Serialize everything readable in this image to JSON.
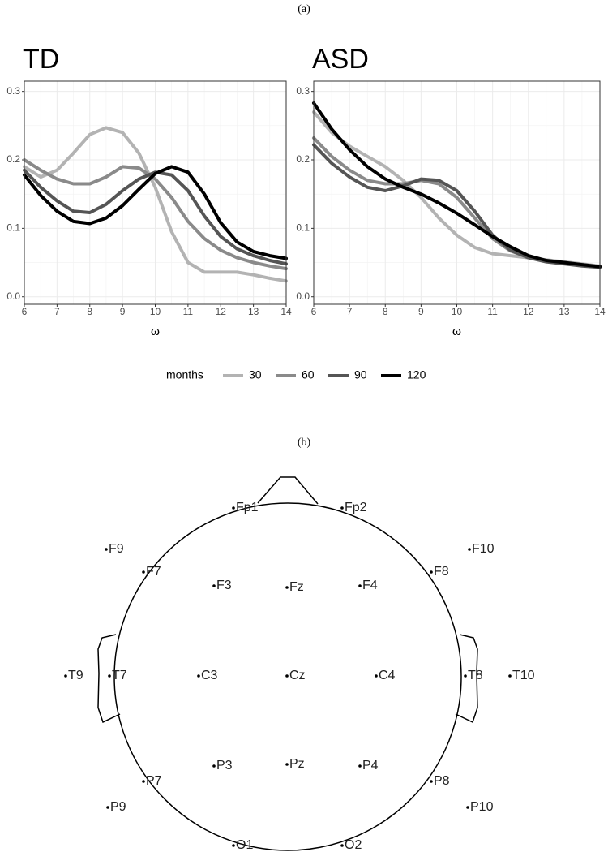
{
  "panel_labels": [
    "(a)",
    "(b)"
  ],
  "legend": {
    "title": "months"
  },
  "chart_data": [
    {
      "type": "line",
      "title": "TD",
      "x_label": "ω",
      "x": [
        6,
        6.5,
        7,
        7.5,
        8,
        8.5,
        9,
        9.5,
        10,
        10.5,
        11,
        11.5,
        12,
        12.5,
        13,
        13.5,
        14
      ],
      "xlim": [
        6,
        14
      ],
      "xticks": [
        6,
        7,
        8,
        9,
        10,
        11,
        12,
        13,
        14
      ],
      "ylim": [
        -0.011,
        0.315
      ],
      "yticks": [
        {
          "value": 0,
          "label": "0.0"
        },
        0.1,
        0.2,
        0.3
      ],
      "grid": true,
      "series": [
        {
          "name": "30",
          "color": "#b3b3b3",
          "values": [
            0.19,
            0.175,
            0.185,
            0.21,
            0.237,
            0.247,
            0.24,
            0.21,
            0.16,
            0.095,
            0.05,
            0.036,
            0.036,
            0.036,
            0.032,
            0.027,
            0.023
          ]
        },
        {
          "name": "60",
          "color": "#8a8a8a",
          "values": [
            0.2,
            0.185,
            0.172,
            0.165,
            0.165,
            0.175,
            0.19,
            0.188,
            0.172,
            0.145,
            0.11,
            0.085,
            0.068,
            0.057,
            0.05,
            0.045,
            0.041
          ]
        },
        {
          "name": "90",
          "color": "#555555",
          "values": [
            0.185,
            0.16,
            0.14,
            0.125,
            0.123,
            0.135,
            0.155,
            0.172,
            0.182,
            0.178,
            0.155,
            0.118,
            0.088,
            0.07,
            0.06,
            0.053,
            0.048
          ]
        },
        {
          "name": "120",
          "color": "#000000",
          "values": [
            0.178,
            0.148,
            0.125,
            0.11,
            0.107,
            0.115,
            0.133,
            0.157,
            0.18,
            0.19,
            0.182,
            0.15,
            0.108,
            0.08,
            0.066,
            0.06,
            0.056
          ]
        }
      ]
    },
    {
      "type": "line",
      "title": "ASD",
      "x_label": "ω",
      "x": [
        6,
        6.5,
        7,
        7.5,
        8,
        8.5,
        9,
        9.5,
        10,
        10.5,
        11,
        11.5,
        12,
        12.5,
        13,
        13.5,
        14
      ],
      "xlim": [
        6,
        14
      ],
      "xticks": [
        6,
        7,
        8,
        9,
        10,
        11,
        12,
        13,
        14
      ],
      "ylim": [
        -0.011,
        0.315
      ],
      "yticks": [
        {
          "value": 0,
          "label": "0.0"
        },
        0.1,
        0.2,
        0.3
      ],
      "grid": true,
      "series": [
        {
          "name": "30",
          "color": "#b3b3b3",
          "values": [
            0.27,
            0.24,
            0.22,
            0.205,
            0.19,
            0.17,
            0.145,
            0.115,
            0.09,
            0.072,
            0.063,
            0.06,
            0.057,
            0.054,
            0.051,
            0.048,
            0.045
          ]
        },
        {
          "name": "60",
          "color": "#8a8a8a",
          "values": [
            0.232,
            0.205,
            0.185,
            0.17,
            0.165,
            0.165,
            0.17,
            0.165,
            0.145,
            0.115,
            0.085,
            0.067,
            0.058,
            0.052,
            0.049,
            0.047,
            0.044
          ]
        },
        {
          "name": "90",
          "color": "#555555",
          "values": [
            0.222,
            0.195,
            0.175,
            0.16,
            0.155,
            0.162,
            0.172,
            0.17,
            0.155,
            0.125,
            0.09,
            0.068,
            0.057,
            0.051,
            0.048,
            0.045,
            0.043
          ]
        },
        {
          "name": "120",
          "color": "#000000",
          "values": [
            0.283,
            0.245,
            0.215,
            0.19,
            0.172,
            0.16,
            0.15,
            0.137,
            0.122,
            0.105,
            0.088,
            0.073,
            0.06,
            0.053,
            0.05,
            0.047,
            0.044
          ]
        }
      ]
    }
  ],
  "electrodes": [
    "Fp1",
    "Fp2",
    "F9",
    "F7",
    "F3",
    "Fz",
    "F4",
    "F8",
    "F10",
    "T9",
    "T7",
    "C3",
    "Cz",
    "C4",
    "T8",
    "T10",
    "P7",
    "P3",
    "Pz",
    "P4",
    "P8",
    "P9",
    "P10",
    "O1",
    "O2"
  ]
}
